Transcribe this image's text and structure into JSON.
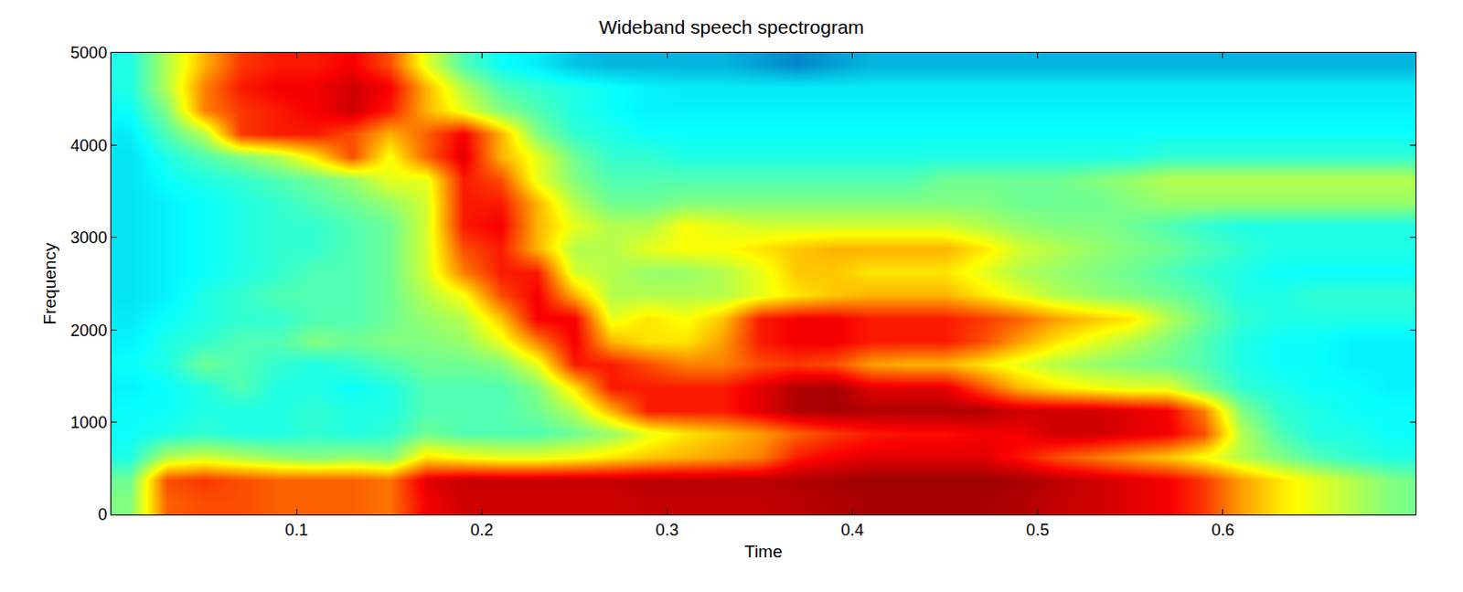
{
  "chart_data": {
    "type": "heatmap",
    "title": "Wideband speech spectrogram",
    "x_label": "Time",
    "y_label": "Frequency",
    "xlim": [
      0,
      0.704
    ],
    "xticks": [
      0.1,
      0.2,
      0.3,
      0.4,
      0.5,
      0.6
    ],
    "ylim": [
      0,
      5000
    ],
    "yticks": [
      0,
      1000,
      2000,
      3000,
      4000,
      5000
    ],
    "zlim": [
      0,
      100
    ],
    "x": [
      0.01,
      0.03,
      0.05,
      0.07,
      0.09,
      0.11,
      0.13,
      0.15,
      0.17,
      0.19,
      0.21,
      0.23,
      0.25,
      0.27,
      0.29,
      0.31,
      0.33,
      0.35,
      0.37,
      0.39,
      0.41,
      0.43,
      0.45,
      0.47,
      0.49,
      0.51,
      0.53,
      0.55,
      0.57,
      0.59,
      0.61,
      0.63,
      0.65,
      0.67,
      0.69,
      0.71
    ],
    "y": [
      125,
      375,
      625,
      875,
      1125,
      1375,
      1625,
      1875,
      2125,
      2375,
      2625,
      2875,
      3125,
      3375,
      3625,
      3875,
      4125,
      4375,
      4625,
      4875
    ],
    "z": [
      [
        50,
        78,
        80,
        80,
        78,
        78,
        78,
        76,
        88,
        92,
        92,
        92,
        92,
        92,
        93,
        93,
        93,
        93,
        94,
        95,
        96,
        96,
        96,
        96,
        95,
        93,
        92,
        90,
        88,
        82,
        72,
        65,
        60,
        55,
        50,
        48
      ],
      [
        48,
        80,
        82,
        80,
        78,
        78,
        78,
        76,
        90,
        93,
        93,
        93,
        93,
        93,
        94,
        94,
        94,
        94,
        95,
        96,
        97,
        97,
        97,
        97,
        96,
        94,
        92,
        90,
        88,
        82,
        72,
        65,
        60,
        55,
        50,
        48
      ],
      [
        40,
        55,
        58,
        55,
        52,
        50,
        52,
        50,
        65,
        62,
        60,
        60,
        62,
        65,
        68,
        70,
        72,
        75,
        85,
        88,
        90,
        90,
        90,
        90,
        86,
        80,
        76,
        72,
        68,
        62,
        55,
        50,
        45,
        42,
        40,
        40
      ],
      [
        38,
        40,
        42,
        40,
        40,
        42,
        40,
        42,
        48,
        45,
        45,
        45,
        48,
        52,
        60,
        65,
        68,
        72,
        78,
        82,
        85,
        86,
        86,
        88,
        88,
        92,
        92,
        90,
        88,
        80,
        55,
        45,
        40,
        40,
        38,
        38
      ],
      [
        38,
        38,
        40,
        40,
        40,
        42,
        40,
        40,
        45,
        45,
        45,
        48,
        55,
        70,
        85,
        85,
        85,
        90,
        95,
        96,
        95,
        95,
        95,
        95,
        92,
        92,
        92,
        90,
        88,
        75,
        50,
        42,
        40,
        38,
        38,
        38
      ],
      [
        36,
        38,
        40,
        45,
        40,
        40,
        38,
        40,
        45,
        45,
        45,
        50,
        65,
        85,
        85,
        85,
        85,
        90,
        95,
        96,
        90,
        90,
        90,
        80,
        70,
        65,
        62,
        60,
        60,
        50,
        42,
        40,
        38,
        38,
        36,
        36
      ],
      [
        38,
        40,
        48,
        45,
        42,
        40,
        42,
        45,
        48,
        48,
        50,
        60,
        85,
        85,
        80,
        75,
        75,
        80,
        82,
        80,
        72,
        70,
        70,
        65,
        60,
        55,
        52,
        50,
        48,
        45,
        40,
        38,
        38,
        36,
        36,
        36
      ],
      [
        36,
        40,
        42,
        45,
        45,
        50,
        48,
        50,
        50,
        52,
        60,
        75,
        88,
        70,
        65,
        65,
        72,
        85,
        88,
        88,
        85,
        85,
        85,
        80,
        72,
        65,
        60,
        55,
        50,
        45,
        40,
        38,
        38,
        36,
        36,
        36
      ],
      [
        35,
        38,
        40,
        42,
        42,
        45,
        45,
        48,
        52,
        55,
        68,
        88,
        88,
        60,
        65,
        62,
        68,
        85,
        88,
        88,
        85,
        85,
        85,
        82,
        78,
        72,
        68,
        65,
        55,
        48,
        42,
        40,
        40,
        40,
        40,
        40
      ],
      [
        34,
        36,
        40,
        42,
        45,
        45,
        45,
        48,
        55,
        62,
        80,
        88,
        70,
        55,
        55,
        55,
        55,
        60,
        65,
        68,
        70,
        70,
        70,
        65,
        60,
        55,
        52,
        50,
        48,
        45,
        40,
        40,
        42,
        42,
        42,
        42
      ],
      [
        34,
        36,
        38,
        40,
        42,
        45,
        45,
        48,
        58,
        75,
        85,
        85,
        58,
        55,
        52,
        52,
        55,
        60,
        68,
        68,
        65,
        65,
        65,
        60,
        55,
        52,
        50,
        48,
        45,
        42,
        40,
        38,
        38,
        38,
        38,
        38
      ],
      [
        34,
        36,
        38,
        40,
        42,
        42,
        45,
        48,
        58,
        80,
        85,
        70,
        55,
        55,
        60,
        62,
        62,
        65,
        68,
        70,
        70,
        70,
        70,
        65,
        58,
        55,
        52,
        50,
        48,
        45,
        42,
        40,
        40,
        40,
        40,
        40
      ],
      [
        34,
        36,
        38,
        40,
        42,
        42,
        45,
        48,
        58,
        85,
        88,
        70,
        60,
        55,
        55,
        62,
        60,
        58,
        58,
        58,
        58,
        58,
        58,
        55,
        52,
        50,
        50,
        48,
        45,
        42,
        40,
        40,
        40,
        40,
        40,
        40
      ],
      [
        34,
        36,
        38,
        40,
        42,
        45,
        48,
        52,
        58,
        85,
        85,
        70,
        55,
        48,
        48,
        50,
        50,
        50,
        50,
        50,
        50,
        50,
        50,
        50,
        48,
        48,
        48,
        50,
        52,
        52,
        52,
        52,
        52,
        52,
        52,
        52
      ],
      [
        34,
        38,
        40,
        42,
        45,
        48,
        52,
        60,
        60,
        85,
        80,
        60,
        50,
        45,
        45,
        45,
        45,
        45,
        45,
        45,
        45,
        45,
        48,
        48,
        48,
        48,
        50,
        52,
        55,
        55,
        55,
        55,
        55,
        55,
        55,
        55
      ],
      [
        34,
        40,
        45,
        50,
        55,
        65,
        80,
        62,
        78,
        90,
        70,
        60,
        48,
        42,
        42,
        40,
        40,
        40,
        40,
        40,
        40,
        40,
        40,
        40,
        40,
        40,
        40,
        40,
        42,
        42,
        42,
        42,
        42,
        42,
        42,
        42
      ],
      [
        35,
        45,
        55,
        82,
        85,
        85,
        80,
        70,
        78,
        88,
        70,
        50,
        42,
        40,
        38,
        38,
        38,
        38,
        38,
        38,
        38,
        38,
        38,
        38,
        38,
        38,
        38,
        38,
        38,
        38,
        38,
        38,
        38,
        38,
        38,
        38
      ],
      [
        38,
        50,
        75,
        82,
        85,
        88,
        92,
        85,
        70,
        60,
        50,
        45,
        40,
        38,
        36,
        36,
        36,
        36,
        36,
        36,
        36,
        36,
        36,
        36,
        36,
        36,
        36,
        36,
        36,
        36,
        36,
        36,
        36,
        36,
        36,
        36
      ],
      [
        40,
        55,
        75,
        85,
        88,
        88,
        92,
        88,
        70,
        55,
        45,
        42,
        40,
        38,
        36,
        35,
        35,
        35,
        35,
        35,
        35,
        35,
        35,
        35,
        35,
        35,
        35,
        35,
        35,
        35,
        35,
        35,
        35,
        35,
        35,
        35
      ],
      [
        40,
        55,
        70,
        82,
        85,
        85,
        88,
        80,
        60,
        45,
        38,
        35,
        30,
        28,
        28,
        28,
        28,
        25,
        22,
        25,
        28,
        28,
        28,
        28,
        28,
        28,
        28,
        28,
        28,
        28,
        28,
        28,
        28,
        28,
        28,
        28
      ]
    ]
  }
}
